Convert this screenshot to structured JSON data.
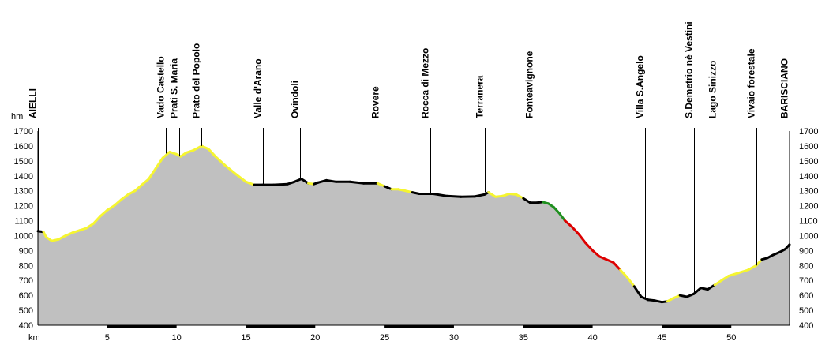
{
  "chart_data": {
    "type": "area",
    "title": "",
    "y_unit_label": "hm",
    "x_unit_label": "km",
    "xlim": [
      0,
      54.2
    ],
    "ylim": [
      400,
      1700
    ],
    "y_ticks": [
      "400",
      "500",
      "600",
      "700",
      "800",
      "900",
      "1000",
      "1100",
      "1200",
      "1300",
      "1400",
      "1500",
      "1600",
      "1700"
    ],
    "x_ticks": [
      "5",
      "10",
      "15",
      "20",
      "25",
      "30",
      "35",
      "40",
      "45",
      "50"
    ],
    "grid": true,
    "fill_color": "#c0c0c0",
    "grid_color": "#ffffff",
    "grade_colors": {
      "black": "#000000",
      "yellow": "#f5f530",
      "green": "#1f8f1f",
      "red": "#dd0000"
    },
    "profile": [
      {
        "x": 0,
        "y": 1030,
        "grade": "black"
      },
      {
        "x": 0.4,
        "y": 1025,
        "grade": "black"
      },
      {
        "x": 0.6,
        "y": 990,
        "grade": "yellow"
      },
      {
        "x": 1.0,
        "y": 965,
        "grade": "yellow"
      },
      {
        "x": 1.5,
        "y": 975,
        "grade": "yellow"
      },
      {
        "x": 2.0,
        "y": 1000,
        "grade": "yellow"
      },
      {
        "x": 2.5,
        "y": 1020,
        "grade": "yellow"
      },
      {
        "x": 3.0,
        "y": 1035,
        "grade": "yellow"
      },
      {
        "x": 3.5,
        "y": 1050,
        "grade": "yellow"
      },
      {
        "x": 4.0,
        "y": 1080,
        "grade": "yellow"
      },
      {
        "x": 4.5,
        "y": 1130,
        "grade": "yellow"
      },
      {
        "x": 5.0,
        "y": 1170,
        "grade": "yellow"
      },
      {
        "x": 5.5,
        "y": 1200,
        "grade": "yellow"
      },
      {
        "x": 6.0,
        "y": 1240,
        "grade": "yellow"
      },
      {
        "x": 6.5,
        "y": 1275,
        "grade": "yellow"
      },
      {
        "x": 7.0,
        "y": 1300,
        "grade": "yellow"
      },
      {
        "x": 7.5,
        "y": 1340,
        "grade": "yellow"
      },
      {
        "x": 8.0,
        "y": 1380,
        "grade": "yellow"
      },
      {
        "x": 8.5,
        "y": 1450,
        "grade": "yellow"
      },
      {
        "x": 9.0,
        "y": 1520,
        "grade": "yellow"
      },
      {
        "x": 9.5,
        "y": 1560,
        "grade": "yellow"
      },
      {
        "x": 10.0,
        "y": 1545,
        "grade": "yellow"
      },
      {
        "x": 10.3,
        "y": 1530,
        "grade": "yellow"
      },
      {
        "x": 10.7,
        "y": 1555,
        "grade": "yellow"
      },
      {
        "x": 11.2,
        "y": 1570,
        "grade": "yellow"
      },
      {
        "x": 11.8,
        "y": 1600,
        "grade": "yellow"
      },
      {
        "x": 12.3,
        "y": 1580,
        "grade": "yellow"
      },
      {
        "x": 12.8,
        "y": 1530,
        "grade": "yellow"
      },
      {
        "x": 13.5,
        "y": 1470,
        "grade": "yellow"
      },
      {
        "x": 14.3,
        "y": 1410,
        "grade": "yellow"
      },
      {
        "x": 15.0,
        "y": 1360,
        "grade": "yellow"
      },
      {
        "x": 15.6,
        "y": 1340,
        "grade": "yellow"
      },
      {
        "x": 16.2,
        "y": 1340,
        "grade": "black"
      },
      {
        "x": 17.0,
        "y": 1340,
        "grade": "black"
      },
      {
        "x": 18.0,
        "y": 1345,
        "grade": "black"
      },
      {
        "x": 18.5,
        "y": 1360,
        "grade": "black"
      },
      {
        "x": 19.0,
        "y": 1380,
        "grade": "black"
      },
      {
        "x": 19.5,
        "y": 1350,
        "grade": "black"
      },
      {
        "x": 19.9,
        "y": 1345,
        "grade": "yellow"
      },
      {
        "x": 20.2,
        "y": 1355,
        "grade": "black"
      },
      {
        "x": 20.8,
        "y": 1370,
        "grade": "black"
      },
      {
        "x": 21.5,
        "y": 1360,
        "grade": "black"
      },
      {
        "x": 22.5,
        "y": 1360,
        "grade": "black"
      },
      {
        "x": 23.5,
        "y": 1350,
        "grade": "black"
      },
      {
        "x": 24.5,
        "y": 1350,
        "grade": "black"
      },
      {
        "x": 25.0,
        "y": 1330,
        "grade": "yellow"
      },
      {
        "x": 25.5,
        "y": 1310,
        "grade": "black"
      },
      {
        "x": 26.0,
        "y": 1310,
        "grade": "yellow"
      },
      {
        "x": 26.5,
        "y": 1300,
        "grade": "yellow"
      },
      {
        "x": 27.0,
        "y": 1290,
        "grade": "yellow"
      },
      {
        "x": 27.5,
        "y": 1280,
        "grade": "black"
      },
      {
        "x": 28.5,
        "y": 1280,
        "grade": "black"
      },
      {
        "x": 29.5,
        "y": 1265,
        "grade": "black"
      },
      {
        "x": 30.5,
        "y": 1260,
        "grade": "black"
      },
      {
        "x": 31.5,
        "y": 1262,
        "grade": "black"
      },
      {
        "x": 32.2,
        "y": 1275,
        "grade": "black"
      },
      {
        "x": 32.5,
        "y": 1290,
        "grade": "black"
      },
      {
        "x": 33.0,
        "y": 1260,
        "grade": "yellow"
      },
      {
        "x": 33.5,
        "y": 1265,
        "grade": "yellow"
      },
      {
        "x": 34.0,
        "y": 1280,
        "grade": "yellow"
      },
      {
        "x": 34.5,
        "y": 1275,
        "grade": "yellow"
      },
      {
        "x": 35.0,
        "y": 1250,
        "grade": "yellow"
      },
      {
        "x": 35.5,
        "y": 1220,
        "grade": "black"
      },
      {
        "x": 36.0,
        "y": 1220,
        "grade": "black"
      },
      {
        "x": 36.4,
        "y": 1225,
        "grade": "black"
      },
      {
        "x": 36.8,
        "y": 1215,
        "grade": "green"
      },
      {
        "x": 37.2,
        "y": 1190,
        "grade": "green"
      },
      {
        "x": 37.6,
        "y": 1150,
        "grade": "green"
      },
      {
        "x": 38.0,
        "y": 1100,
        "grade": "green"
      },
      {
        "x": 38.5,
        "y": 1060,
        "grade": "red"
      },
      {
        "x": 39.0,
        "y": 1010,
        "grade": "red"
      },
      {
        "x": 39.5,
        "y": 950,
        "grade": "red"
      },
      {
        "x": 40.0,
        "y": 900,
        "grade": "red"
      },
      {
        "x": 40.5,
        "y": 860,
        "grade": "red"
      },
      {
        "x": 41.0,
        "y": 840,
        "grade": "red"
      },
      {
        "x": 41.5,
        "y": 820,
        "grade": "red"
      },
      {
        "x": 42.0,
        "y": 770,
        "grade": "red"
      },
      {
        "x": 42.5,
        "y": 720,
        "grade": "yellow"
      },
      {
        "x": 43.0,
        "y": 660,
        "grade": "yellow"
      },
      {
        "x": 43.5,
        "y": 590,
        "grade": "black"
      },
      {
        "x": 44.0,
        "y": 570,
        "grade": "black"
      },
      {
        "x": 44.5,
        "y": 565,
        "grade": "black"
      },
      {
        "x": 45.0,
        "y": 555,
        "grade": "black"
      },
      {
        "x": 45.4,
        "y": 560,
        "grade": "black"
      },
      {
        "x": 45.8,
        "y": 580,
        "grade": "yellow"
      },
      {
        "x": 46.3,
        "y": 600,
        "grade": "yellow"
      },
      {
        "x": 46.8,
        "y": 590,
        "grade": "black"
      },
      {
        "x": 47.3,
        "y": 610,
        "grade": "black"
      },
      {
        "x": 47.8,
        "y": 650,
        "grade": "black"
      },
      {
        "x": 48.3,
        "y": 640,
        "grade": "black"
      },
      {
        "x": 48.8,
        "y": 670,
        "grade": "black"
      },
      {
        "x": 49.3,
        "y": 700,
        "grade": "yellow"
      },
      {
        "x": 49.8,
        "y": 730,
        "grade": "yellow"
      },
      {
        "x": 50.5,
        "y": 750,
        "grade": "yellow"
      },
      {
        "x": 51.2,
        "y": 770,
        "grade": "yellow"
      },
      {
        "x": 51.8,
        "y": 800,
        "grade": "yellow"
      },
      {
        "x": 52.2,
        "y": 840,
        "grade": "yellow"
      },
      {
        "x": 52.6,
        "y": 850,
        "grade": "black"
      },
      {
        "x": 53.0,
        "y": 870,
        "grade": "black"
      },
      {
        "x": 53.5,
        "y": 890,
        "grade": "black"
      },
      {
        "x": 53.9,
        "y": 910,
        "grade": "black"
      },
      {
        "x": 54.2,
        "y": 940,
        "grade": "black"
      }
    ],
    "locations": [
      {
        "name": "AIELLI",
        "km": 0,
        "elev": 1030
      },
      {
        "name": "Vado Castello",
        "km": 9.2,
        "elev": 1550
      },
      {
        "name": "Prati S. Maria",
        "km": 10.2,
        "elev": 1530
      },
      {
        "name": "Prato del Popolo",
        "km": 11.8,
        "elev": 1600
      },
      {
        "name": "Valle d'Arano",
        "km": 16.2,
        "elev": 1340
      },
      {
        "name": "Ovindoli",
        "km": 18.9,
        "elev": 1380
      },
      {
        "name": "Rovere",
        "km": 24.7,
        "elev": 1350
      },
      {
        "name": "Rocca di Mezzo",
        "km": 28.3,
        "elev": 1280
      },
      {
        "name": "Terranera",
        "km": 32.2,
        "elev": 1290
      },
      {
        "name": "Fonteavignone",
        "km": 35.8,
        "elev": 1220
      },
      {
        "name": "Villa S.Angelo",
        "km": 43.8,
        "elev": 575
      },
      {
        "name": "S.Demetrio nè Vestini",
        "km": 47.3,
        "elev": 610
      },
      {
        "name": "Lago Sinizzo",
        "km": 49.0,
        "elev": 680
      },
      {
        "name": "Vivaio forestale",
        "km": 51.8,
        "elev": 800
      },
      {
        "name": "BARISCIANO",
        "km": 54.2,
        "elev": 940
      }
    ]
  }
}
